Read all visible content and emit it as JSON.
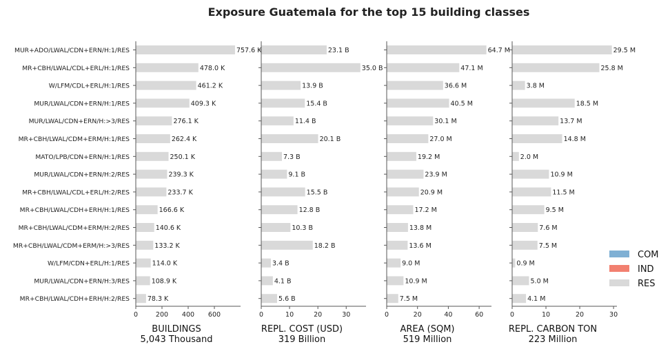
{
  "chart_data": {
    "type": "bar",
    "orientation": "horizontal",
    "title": "Exposure Guatemala for the top 15 building classes",
    "categories": [
      "MUR+ADO/LWAL/CDN+ERN/H:1/RES",
      "MR+CBH/LWAL/CDL+ERL/H:1/RES",
      "W/LFM/CDL+ERL/H:1/RES",
      "MUR/LWAL/CDN+ERN/H:1/RES",
      "MUR/LWAL/CDN+ERN/H:>3/RES",
      "MR+CBH/LWAL/CDM+ERM/H:1/RES",
      "MATO/LPB/CDN+ERN/H:1/RES",
      "MUR/LWAL/CDN+ERN/H:2/RES",
      "MR+CBH/LWAL/CDL+ERL/H:2/RES",
      "MR+CBH/LWAL/CDH+ERH/H:1/RES",
      "MR+CBH/LWAL/CDM+ERM/H:2/RES",
      "MR+CBH/LWAL/CDM+ERM/H:>3/RES",
      "W/LFM/CDN+ERL/H:1/RES",
      "MUR/LWAL/CDN+ERN/H:3/RES",
      "MR+CBH/LWAL/CDH+ERH/H:2/RES"
    ],
    "legend": {
      "position": "right",
      "entries": [
        {
          "name": "COM",
          "color": "#7fb0d4"
        },
        {
          "name": "IND",
          "color": "#f28070"
        },
        {
          "name": "RES",
          "color": "#d9d9d9"
        }
      ]
    },
    "panels": [
      {
        "xlabel": "BUILDINGS",
        "subtitle": "5,043 Thousand",
        "xlim": [
          0,
          800
        ],
        "xticks": [
          0,
          200,
          400,
          600
        ],
        "values": [
          757.6,
          478.0,
          461.2,
          409.3,
          276.1,
          262.4,
          250.1,
          239.3,
          233.7,
          166.6,
          140.6,
          133.2,
          114.0,
          108.9,
          78.3
        ],
        "labels": [
          "757.6 K",
          "478.0 K",
          "461.2 K",
          "409.3 K",
          "276.1 K",
          "262.4 K",
          "250.1 K",
          "239.3 K",
          "233.7 K",
          "166.6 K",
          "140.6 K",
          "133.2 K",
          "114.0 K",
          "108.9 K",
          "78.3 K"
        ]
      },
      {
        "xlabel": "REPL. COST (USD)",
        "subtitle": "319 Billion",
        "xlim": [
          0,
          37
        ],
        "xticks": [
          0,
          10,
          20,
          30
        ],
        "values": [
          23.1,
          35.0,
          13.9,
          15.4,
          11.4,
          20.1,
          7.3,
          9.1,
          15.5,
          12.8,
          10.3,
          18.2,
          3.4,
          4.1,
          5.6
        ],
        "labels": [
          "23.1 B",
          "35.0 B",
          "13.9 B",
          "15.4 B",
          "11.4 B",
          "20.1 B",
          "7.3 B",
          "9.1 B",
          "15.5 B",
          "12.8 B",
          "10.3 B",
          "18.2 B",
          "3.4 B",
          "4.1 B",
          "5.6 B"
        ]
      },
      {
        "xlabel": "AREA (SQM)",
        "subtitle": "519 Million",
        "xlim": [
          0,
          68
        ],
        "xticks": [
          0,
          20,
          40,
          60
        ],
        "values": [
          64.7,
          47.1,
          36.6,
          40.5,
          30.1,
          27.0,
          19.2,
          23.9,
          20.9,
          17.2,
          13.8,
          13.6,
          9.0,
          10.9,
          7.5
        ],
        "labels": [
          "64.7 M",
          "47.1 M",
          "36.6 M",
          "40.5 M",
          "30.1 M",
          "27.0 M",
          "19.2 M",
          "23.9 M",
          "20.9 M",
          "17.2 M",
          "13.8 M",
          "13.6 M",
          "9.0 M",
          "10.9 M",
          "7.5 M"
        ]
      },
      {
        "xlabel": "REPL. CARBON TON",
        "subtitle": "223 Million",
        "xlim": [
          0,
          31
        ],
        "xticks": [
          0,
          10,
          20,
          30
        ],
        "values": [
          29.5,
          25.8,
          3.8,
          18.5,
          13.7,
          14.8,
          2.0,
          10.9,
          11.5,
          9.5,
          7.6,
          7.5,
          0.9,
          5.0,
          4.1
        ],
        "labels": [
          "29.5 M",
          "25.8 M",
          "3.8 M",
          "18.5 M",
          "13.7 M",
          "14.8 M",
          "2.0 M",
          "10.9 M",
          "11.5 M",
          "9.5 M",
          "7.6 M",
          "7.5 M",
          "0.9 M",
          "5.0 M",
          "4.1 M"
        ]
      }
    ]
  }
}
